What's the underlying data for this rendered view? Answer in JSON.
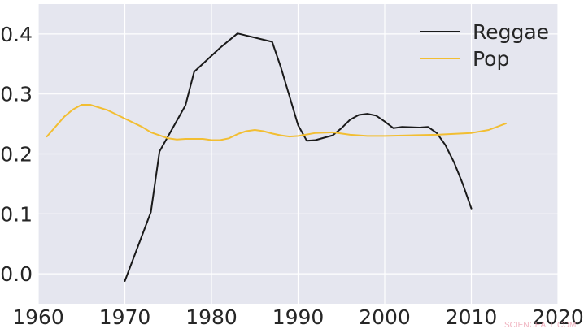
{
  "chart_data": {
    "type": "line",
    "title": "",
    "xlabel": "",
    "ylabel": "",
    "xlim": [
      1960,
      2020
    ],
    "ylim": [
      -0.05,
      0.45
    ],
    "x_ticks": [
      1960,
      1970,
      1980,
      1990,
      2000,
      2010,
      2020
    ],
    "y_ticks": [
      0.0,
      0.1,
      0.2,
      0.3,
      0.4
    ],
    "x_tick_labels": [
      "1960",
      "1970",
      "1980",
      "1990",
      "2000",
      "2010",
      "2020"
    ],
    "y_tick_labels": [
      "0.0",
      "0.1",
      "0.2",
      "0.3",
      "0.4"
    ],
    "grid": true,
    "legend_position": "top-right",
    "background_color": "#e5e6ef",
    "series": [
      {
        "name": "Reggae",
        "color": "#1a1a1a",
        "x": [
          1970,
          1973,
          1974,
          1977,
          1978,
          1981,
          1983,
          1987,
          1988,
          1990,
          1991,
          1992,
          1994,
          1995,
          1996,
          1997,
          1998,
          1999,
          2000,
          2001,
          2002,
          2004,
          2005,
          2006,
          2007,
          2008,
          2009,
          2010
        ],
        "y": [
          -0.012,
          0.103,
          0.204,
          0.281,
          0.337,
          0.377,
          0.401,
          0.387,
          0.345,
          0.248,
          0.222,
          0.223,
          0.231,
          0.243,
          0.257,
          0.265,
          0.267,
          0.264,
          0.254,
          0.243,
          0.245,
          0.244,
          0.245,
          0.235,
          0.215,
          0.186,
          0.15,
          0.109
        ]
      },
      {
        "name": "Pop",
        "color": "#f2be32",
        "x": [
          1961,
          1963,
          1964,
          1965,
          1966,
          1968,
          1970,
          1972,
          1973,
          1975,
          1976,
          1977,
          1979,
          1980,
          1981,
          1982,
          1983,
          1984,
          1985,
          1986,
          1987,
          1988,
          1989,
          1990,
          1992,
          1994,
          1996,
          1998,
          2000,
          2003,
          2006,
          2010,
          2012,
          2014
        ],
        "y": [
          0.229,
          0.262,
          0.274,
          0.282,
          0.282,
          0.273,
          0.259,
          0.245,
          0.236,
          0.226,
          0.224,
          0.225,
          0.225,
          0.223,
          0.223,
          0.226,
          0.233,
          0.238,
          0.24,
          0.238,
          0.234,
          0.231,
          0.229,
          0.23,
          0.235,
          0.236,
          0.232,
          0.23,
          0.23,
          0.231,
          0.232,
          0.235,
          0.24,
          0.251
        ]
      }
    ]
  },
  "watermark": {
    "text": "SCIENCEALL.COM"
  }
}
